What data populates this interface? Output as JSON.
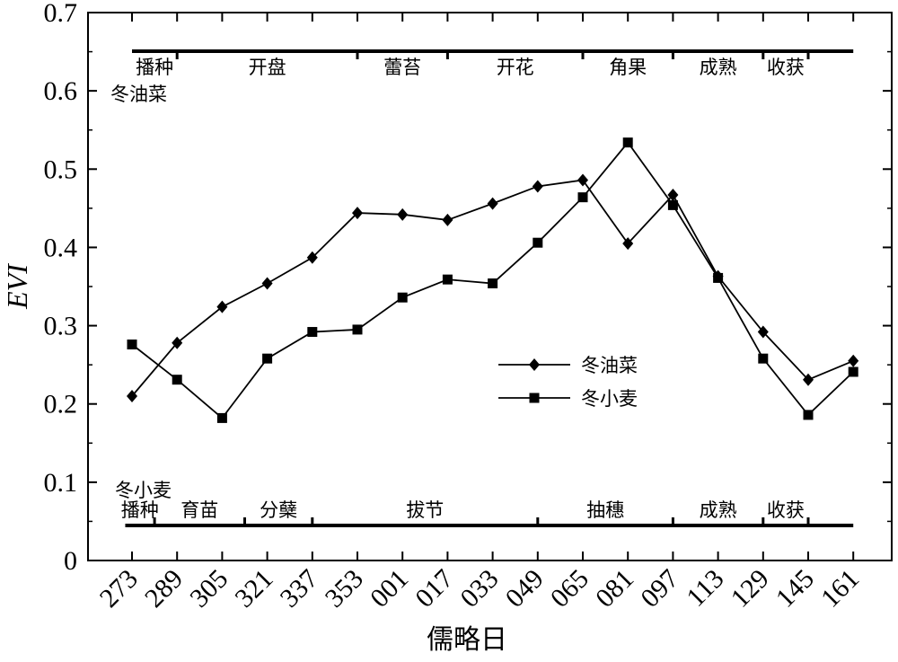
{
  "chart_data": {
    "type": "line",
    "xlabel": "儒略日",
    "ylabel": "EVI",
    "ylim": [
      0,
      0.7
    ],
    "yticks": [
      0,
      0.1,
      0.2,
      0.3,
      0.4,
      0.5,
      0.6,
      0.7
    ],
    "ytick_labels": [
      "0",
      "0.1",
      "0.2",
      "0.3",
      "0.4",
      "0.5",
      "0.6",
      "0.7"
    ],
    "categories": [
      "273",
      "289",
      "305",
      "321",
      "337",
      "353",
      "001",
      "017",
      "033",
      "049",
      "065",
      "081",
      "097",
      "113",
      "129",
      "145",
      "161"
    ],
    "series": [
      {
        "name": "冬油菜",
        "marker": "diamond",
        "color": "#000000",
        "values": [
          0.21,
          0.278,
          0.324,
          0.354,
          0.387,
          0.444,
          0.442,
          0.435,
          0.456,
          0.478,
          0.486,
          0.405,
          0.467,
          0.363,
          0.292,
          0.231,
          0.255
        ]
      },
      {
        "name": "冬小麦",
        "marker": "square",
        "color": "#000000",
        "values": [
          0.276,
          0.231,
          0.182,
          0.258,
          0.292,
          0.295,
          0.336,
          0.359,
          0.354,
          0.406,
          0.464,
          0.534,
          0.454,
          0.361,
          0.258,
          0.186,
          0.241
        ]
      }
    ],
    "legend": {
      "position": "center-right",
      "entries": [
        "冬油菜",
        "冬小麦"
      ]
    },
    "grid": false,
    "annotations": {
      "rapeseed": {
        "crop_label": "冬油菜",
        "stages": [
          "播种",
          "开盘",
          "蕾苔",
          "开花",
          "角果",
          "成熟",
          "收获"
        ],
        "timeline_span": [
          0,
          16
        ],
        "boundaries": [
          1,
          5,
          7,
          10,
          12,
          14,
          15
        ]
      },
      "wheat": {
        "crop_label": "冬小麦",
        "stages": [
          "播种",
          "育苗",
          "分蘖",
          "拔节",
          "抽穗",
          "成熟",
          "收获"
        ],
        "timeline_span": [
          -0.15,
          16
        ],
        "boundaries": [
          0.5,
          2.5,
          4,
          9,
          12,
          14,
          15
        ]
      }
    }
  }
}
